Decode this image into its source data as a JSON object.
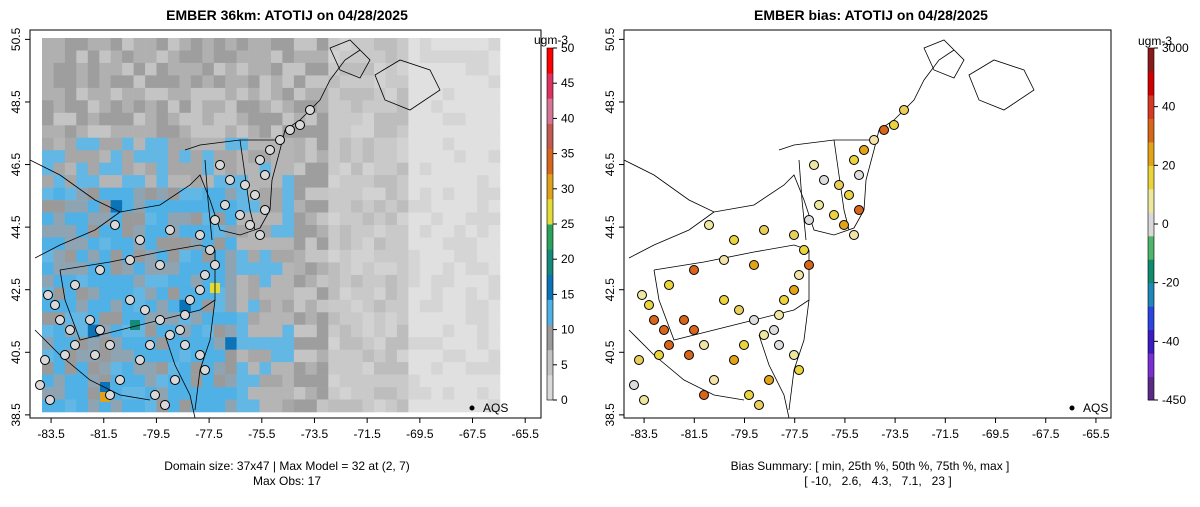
{
  "colors": {
    "conc_scale": [
      "#d9d9d9",
      "#c2c2c2",
      "#9a9a9a",
      "#4fb1e5",
      "#0b74b8",
      "#138a7a",
      "#2aa25c",
      "#e3dc36",
      "#e0a11b",
      "#d9661d",
      "#c45a4f",
      "#d77595",
      "#e03060",
      "#ff0000"
    ],
    "bias_scale": [
      "#5b2a86",
      "#7b2fd0",
      "#3b1cc1",
      "#2d44e0",
      "#1f88b8",
      "#0f8b6f",
      "#50b56a",
      "#d9d9d9",
      "#eee7a0",
      "#ead33c",
      "#e2a416",
      "#d7661a",
      "#d63a24",
      "#d10000",
      "#8b1a1a"
    ],
    "frame": "#000000",
    "missing": "#ffffff"
  },
  "left": {
    "title": "EMBER 36km: ATOTIJ on 04/28/2025",
    "footer_line1": "Domain size: 37x47 | Max Model = 32 at (2, 7)",
    "footer_line2": "Max Obs: 17",
    "legend_unit": "ugm-3",
    "legend_ticks": [
      "0",
      "5",
      "10",
      "15",
      "20",
      "25",
      "30",
      "35",
      "40",
      "45",
      "50"
    ],
    "site_label": "AQS"
  },
  "right": {
    "title": "EMBER bias: ATOTIJ on 04/28/2025",
    "footer_line1": "Bias Summary: [ min, 25th %, 50th %, 75th %, max ]",
    "footer_line2": "[ -10,   2.6,   4.3,   7.1,   23 ]",
    "legend_unit": "ugm-3",
    "legend_ticks": [
      "-450",
      "-40",
      "-20",
      "0",
      "20",
      "40",
      "3000"
    ],
    "site_label": "AQS"
  },
  "x_ticks": [
    "-83.5",
    "-81.5",
    "-79.5",
    "-77.5",
    "-75.5",
    "-73.5",
    "-71.5",
    "-69.5",
    "-67.5",
    "-65.5"
  ],
  "y_ticks": [
    "38.5",
    "40.5",
    "42.5",
    "44.5",
    "46.5",
    "48.5",
    "50.5"
  ],
  "chart_data": [
    {
      "type": "heatmap",
      "title": "EMBER 36km: ATOTIJ on 04/28/2025",
      "x_ticks": [
        -83.5,
        -81.5,
        -79.5,
        -77.5,
        -75.5,
        -73.5,
        -71.5,
        -69.5,
        -67.5,
        -65.5
      ],
      "y_ticks": [
        38.5,
        40.5,
        42.5,
        44.5,
        46.5,
        48.5,
        50.5
      ],
      "xlim": [
        -84.3,
        -64.9
      ],
      "ylim": [
        38.4,
        50.8
      ],
      "colorbar": {
        "unit": "ugm-3",
        "range": [
          0,
          50
        ]
      },
      "domain_size": "37x47",
      "max_model": 32,
      "max_model_at": "(2, 7)",
      "max_obs": 17,
      "legend": [
        "AQS"
      ]
    },
    {
      "type": "scatter",
      "title": "EMBER bias: ATOTIJ on 04/28/2025",
      "x_ticks": [
        -83.5,
        -81.5,
        -79.5,
        -77.5,
        -75.5,
        -73.5,
        -71.5,
        -69.5,
        -67.5,
        -65.5
      ],
      "y_ticks": [
        38.5,
        40.5,
        42.5,
        44.5,
        46.5,
        48.5,
        50.5
      ],
      "xlim": [
        -84.3,
        -64.9
      ],
      "ylim": [
        38.4,
        50.8
      ],
      "colorbar": {
        "unit": "ugm-3",
        "ticks": [
          -450,
          -40,
          -20,
          0,
          20,
          40,
          3000
        ]
      },
      "bias_summary": {
        "min": -10,
        "p25": 2.6,
        "p50": 4.3,
        "p75": 7.1,
        "max": 23
      },
      "legend": [
        "AQS"
      ]
    }
  ]
}
